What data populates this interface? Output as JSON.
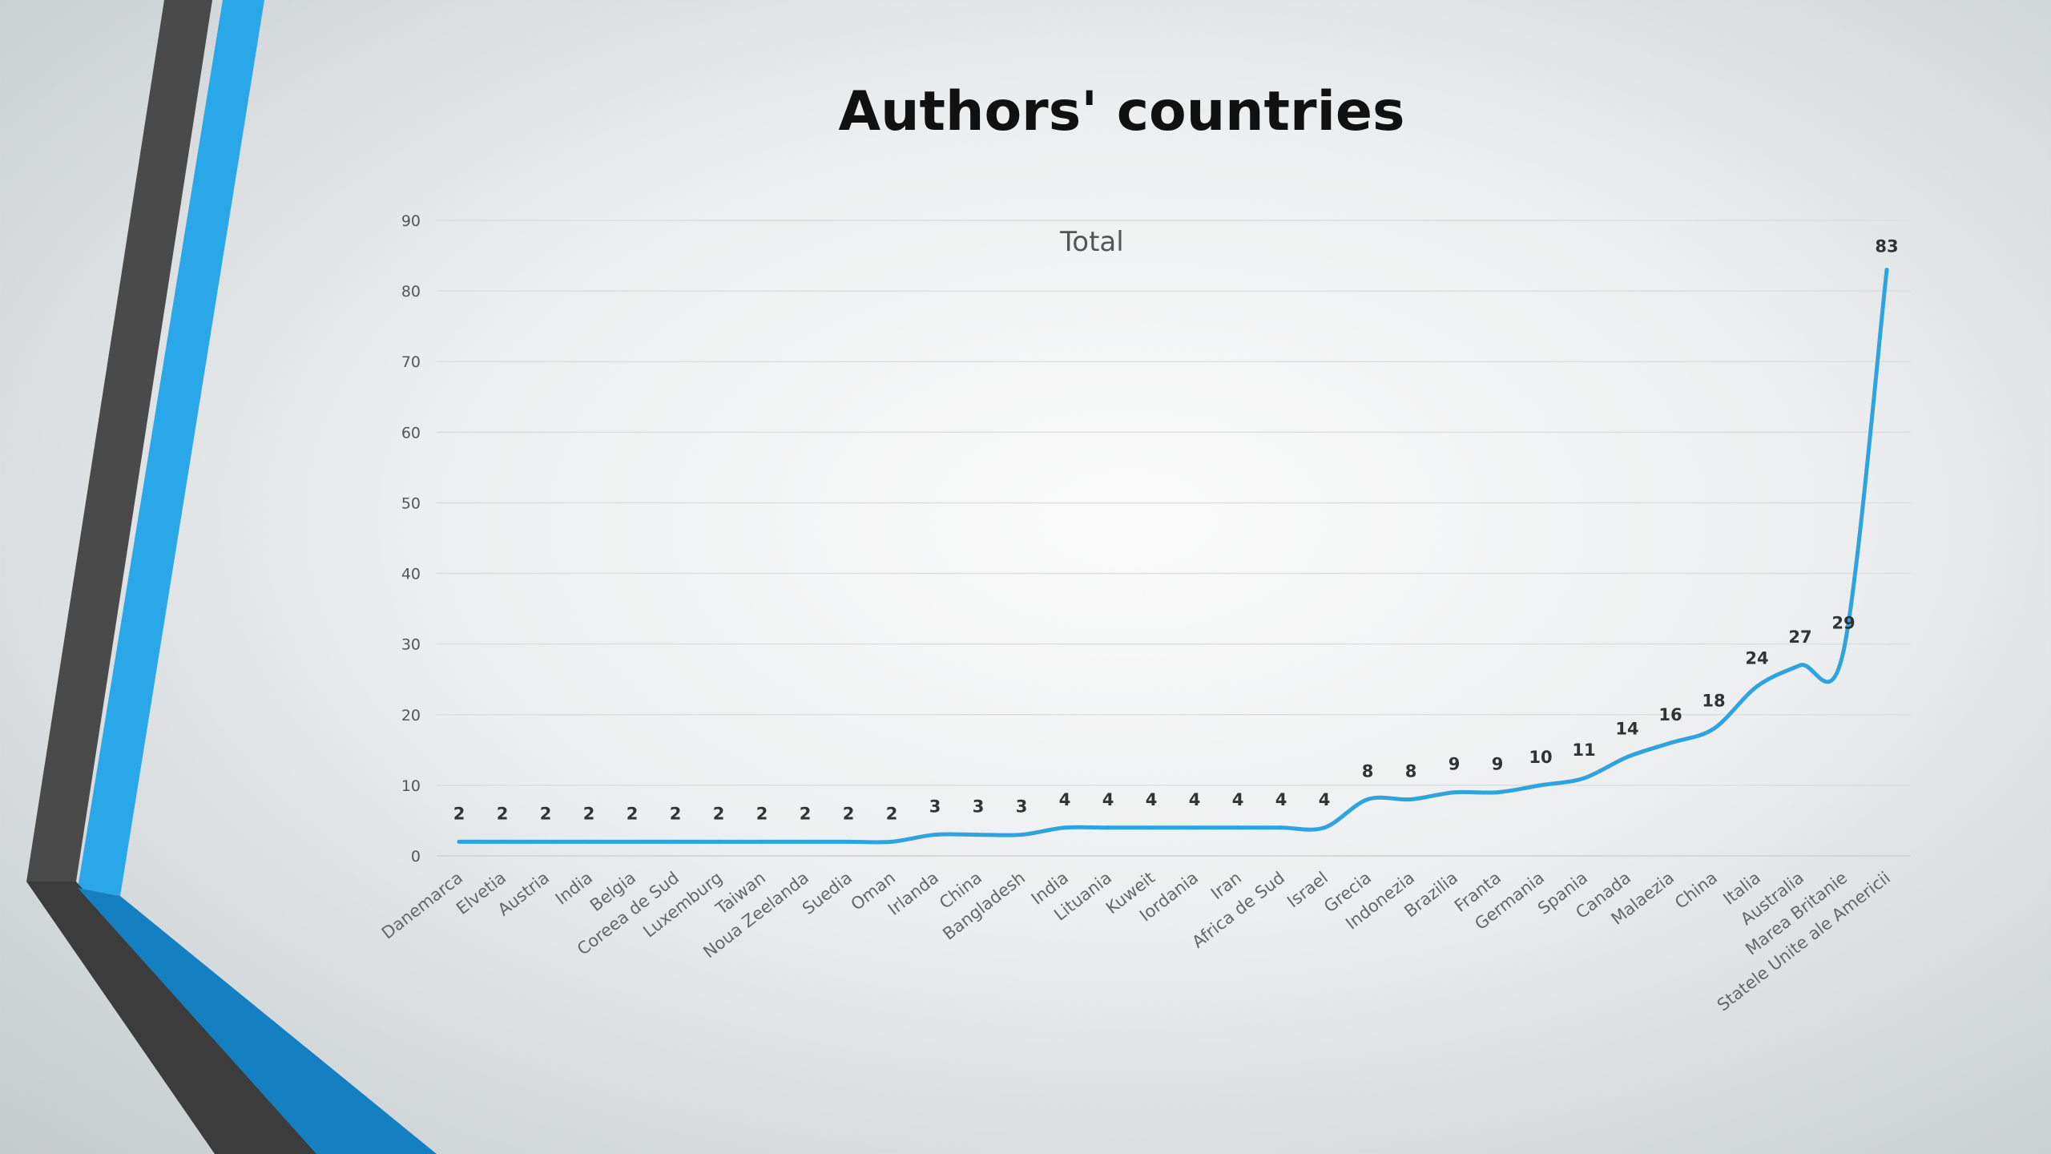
{
  "colors": {
    "accent": "#2aa7e8",
    "accent_dark": "#1480c2",
    "dark": "#4a4a4a",
    "line": "#2ea3e0"
  },
  "chart_data": {
    "type": "line",
    "title": "Authors' countries",
    "series_title": "Total",
    "categories": [
      "Danemarca",
      "Elvetia",
      "Austria",
      "India",
      "Belgia",
      "Coreea de Sud",
      "Luxemburg",
      "Taiwan",
      "Noua Zeelanda",
      "Suedia",
      "Oman",
      "Irlanda",
      "China",
      "Bangladesh",
      "India",
      "Lituania",
      "Kuweit",
      "Iordania",
      "Iran",
      "Africa de Sud",
      "Israel",
      "Grecia",
      "Indonezia",
      "Brazilia",
      "Franta",
      "Germania",
      "Spania",
      "Canada",
      "Malaezia",
      "China",
      "Italia",
      "Australia",
      "Marea Britanie",
      "Statele Unite ale Americii"
    ],
    "series": [
      {
        "name": "Total",
        "values": [
          2,
          2,
          2,
          2,
          2,
          2,
          2,
          2,
          2,
          2,
          2,
          3,
          3,
          3,
          4,
          4,
          4,
          4,
          4,
          4,
          4,
          8,
          8,
          9,
          9,
          10,
          11,
          14,
          16,
          18,
          24,
          27,
          29,
          83
        ]
      }
    ],
    "ylim": [
      0,
      90
    ],
    "yticks": [
      0,
      10,
      20,
      30,
      40,
      50,
      60,
      70,
      80,
      90
    ],
    "grid": true,
    "legend": "none",
    "data_labels": true
  }
}
